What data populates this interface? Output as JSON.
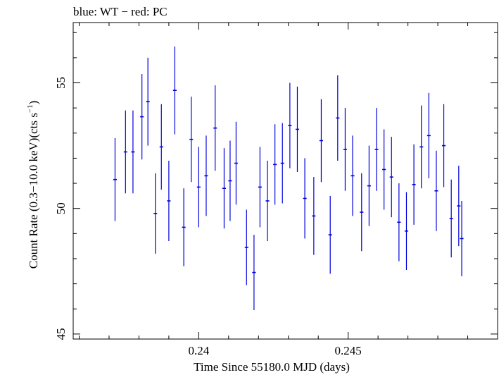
{
  "chart_data": {
    "type": "scatter",
    "title": "blue: WT − red: PC",
    "xlabel": "Time Since 55180.0 MJD (days)",
    "ylabel_main": "Count Rate (0.3−10.0 keV)(cts s",
    "ylabel_sup": "−1",
    "ylabel_end": ")",
    "xlim": [
      0.2358,
      0.25
    ],
    "ylim": [
      44.8,
      57.4
    ],
    "x_ticks": [
      0.24,
      0.245
    ],
    "x_tick_labels": [
      "0.24",
      "0.245"
    ],
    "y_ticks": [
      45,
      50,
      55
    ],
    "y_tick_labels": [
      "45",
      "50",
      "55"
    ],
    "grid": false,
    "series": [
      {
        "color": "#0000dd",
        "x": [
          0.2372,
          0.23755,
          0.2378,
          0.2381,
          0.2383,
          0.23855,
          0.23875,
          0.239,
          0.2392,
          0.2395,
          0.23975,
          0.24,
          0.24025,
          0.24055,
          0.24085,
          0.24105,
          0.24125,
          0.2416,
          0.24185,
          0.24205,
          0.2423,
          0.24255,
          0.2428,
          0.24305,
          0.2433,
          0.24355,
          0.24385,
          0.2441,
          0.2444,
          0.24465,
          0.2449,
          0.24515,
          0.24545,
          0.2457,
          0.24595,
          0.2462,
          0.24645,
          0.2467,
          0.24695,
          0.2472,
          0.24745,
          0.2477,
          0.24795,
          0.2482,
          0.24845,
          0.2487
        ],
        "y": [
          51.15,
          52.25,
          52.25,
          53.65,
          54.25,
          49.8,
          52.45,
          50.3,
          54.7,
          49.25,
          52.75,
          50.85,
          51.3,
          53.2,
          50.8,
          51.1,
          51.8,
          48.45,
          47.45,
          50.85,
          50.3,
          51.75,
          51.8,
          53.3,
          53.15,
          50.4,
          49.7,
          52.7,
          48.95,
          53.6,
          52.35,
          51.3,
          49.85,
          50.9,
          52.35,
          51.55,
          51.25,
          49.45,
          49.1,
          50.95,
          52.45,
          52.9,
          50.7,
          52.5,
          49.6,
          50.1
        ],
        "y_err": [
          1.65,
          1.65,
          1.65,
          1.7,
          1.75,
          1.6,
          1.7,
          1.6,
          1.75,
          1.55,
          1.7,
          1.6,
          1.6,
          1.7,
          1.6,
          1.6,
          1.65,
          1.5,
          1.5,
          1.6,
          1.6,
          1.6,
          1.6,
          1.7,
          1.7,
          1.6,
          1.55,
          1.65,
          1.55,
          1.7,
          1.65,
          1.6,
          1.55,
          1.6,
          1.65,
          1.6,
          1.6,
          1.55,
          1.55,
          1.6,
          1.65,
          1.7,
          1.6,
          1.65,
          1.55,
          1.6
        ],
        "x_err": 6e-05
      }
    ],
    "extra_points": [
      {
        "x": 0.2488,
        "y": 48.8,
        "y_err": 1.5
      }
    ]
  }
}
